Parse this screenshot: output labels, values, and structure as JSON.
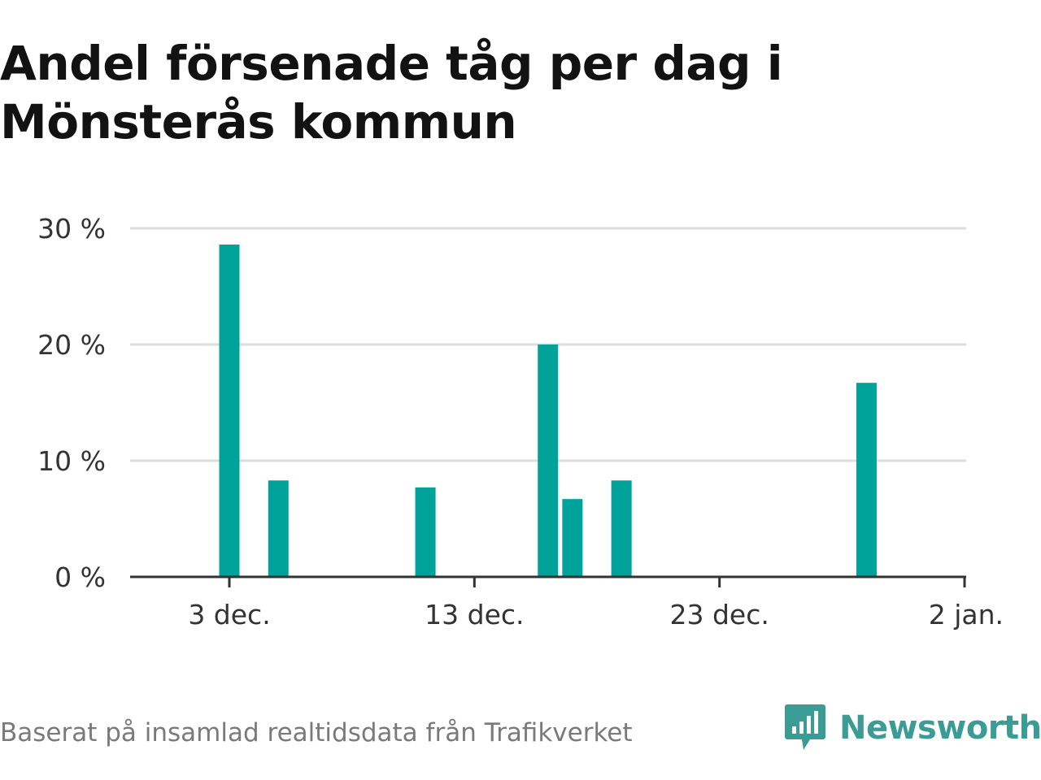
{
  "header": {
    "title": "Andel försenade tåg per dag i Mönsterås kommun"
  },
  "footer": {
    "source": "Baserat på insamlad realtidsdata från Trafikverket",
    "brand": "Newsworthy"
  },
  "colors": {
    "bar": "#00a39a",
    "grid": "#dddddd",
    "axis": "#333333",
    "brand": "#3a9c94"
  },
  "chart_data": {
    "type": "bar",
    "title": "Andel försenade tåg per dag i Mönsterås kommun",
    "xlabel": "",
    "ylabel": "",
    "y_unit": "%",
    "ylim": [
      0,
      30
    ],
    "yticks": [
      0,
      10,
      20,
      30
    ],
    "ytick_labels": [
      "0 %",
      "10 %",
      "20 %",
      "30 %"
    ],
    "x_range": [
      "2023-11-29",
      "2024-01-02"
    ],
    "xticks": [
      "2023-12-03",
      "2023-12-13",
      "2023-12-23",
      "2024-01-02"
    ],
    "xtick_labels": [
      "3 dec.",
      "13 dec.",
      "23 dec.",
      "2 jan."
    ],
    "grid": true,
    "legend": "none",
    "series": [
      {
        "dates": [
          "2023-12-03",
          "2023-12-05",
          "2023-12-11",
          "2023-12-16",
          "2023-12-17",
          "2023-12-19",
          "2023-12-29"
        ],
        "values": [
          28.6,
          8.3,
          7.7,
          20.0,
          6.7,
          8.3,
          16.7
        ]
      }
    ]
  }
}
